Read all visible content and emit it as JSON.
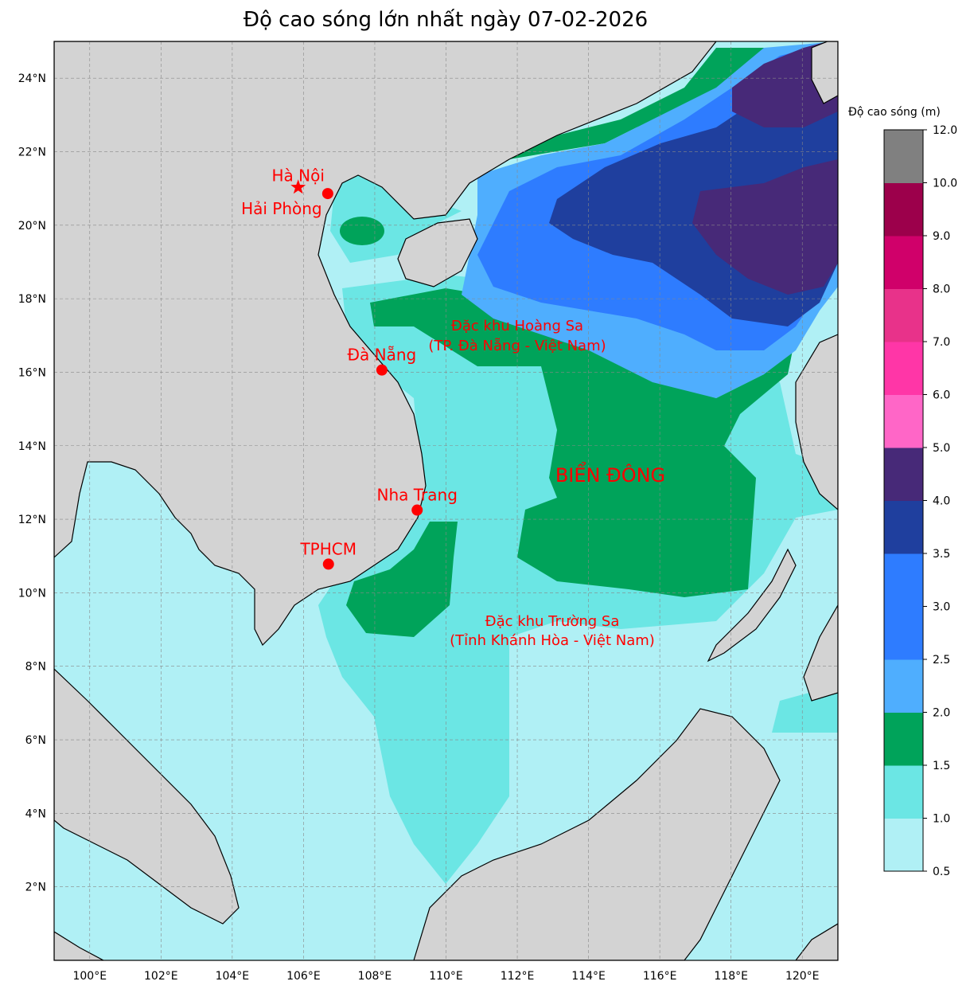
{
  "title": "Độ cao sóng lớn nhất ngày 07-02-2026",
  "colorbar": {
    "title": "Độ cao sóng (m)",
    "levels": [
      {
        "from": 0.5,
        "to": 1.0,
        "color": "#b0f0f5"
      },
      {
        "from": 1.0,
        "to": 1.5,
        "color": "#6be6e4"
      },
      {
        "from": 1.5,
        "to": 2.0,
        "color": "#00a35a"
      },
      {
        "from": 2.0,
        "to": 2.5,
        "color": "#4faefe"
      },
      {
        "from": 2.5,
        "to": 3.0,
        "color": "#2e7cff"
      },
      {
        "from": 3.0,
        "to": 3.5,
        "color": "#2e7cff"
      },
      {
        "from": 3.5,
        "to": 4.0,
        "color": "#1f3f9e"
      },
      {
        "from": 4.0,
        "to": 5.0,
        "color": "#472978"
      },
      {
        "from": 5.0,
        "to": 6.0,
        "color": "#ff66c7"
      },
      {
        "from": 6.0,
        "to": 7.0,
        "color": "#ff36a7"
      },
      {
        "from": 7.0,
        "to": 8.0,
        "color": "#e8328a"
      },
      {
        "from": 8.0,
        "to": 9.0,
        "color": "#d0006a"
      },
      {
        "from": 9.0,
        "to": 10.0,
        "color": "#9c004b"
      },
      {
        "from": 10.0,
        "to": 12.0,
        "color": "#808080"
      }
    ],
    "tick_labels": [
      "0.5",
      "1.0",
      "1.5",
      "2.0",
      "2.5",
      "3.0",
      "3.5",
      "4.0",
      "5.0",
      "6.0",
      "7.0",
      "8.0",
      "9.0",
      "10.0",
      "12.0"
    ]
  },
  "axes": {
    "lon_labels": [
      "100°E",
      "102°E",
      "104°E",
      "106°E",
      "108°E",
      "110°E",
      "112°E",
      "114°E",
      "116°E",
      "118°E",
      "120°E"
    ],
    "lat_labels": [
      "2°N",
      "4°N",
      "6°N",
      "8°N",
      "10°N",
      "12°N",
      "14°N",
      "16°N",
      "18°N",
      "20°N",
      "22°N",
      "24°N"
    ],
    "lon_range": [
      99,
      121
    ],
    "lat_range": [
      0,
      25
    ],
    "grid": true
  },
  "places": [
    {
      "name": "Hà Nội",
      "symbol": "star",
      "lon": 105.85,
      "lat": 21.03
    },
    {
      "name": "Hải Phòng",
      "symbol": "dot",
      "lon": 106.68,
      "lat": 20.86
    },
    {
      "name": "Đà Nẵng",
      "symbol": "dot",
      "lon": 108.2,
      "lat": 16.06
    },
    {
      "name": "Nha Trang",
      "symbol": "dot",
      "lon": 109.19,
      "lat": 12.25
    },
    {
      "name": "TPHCM",
      "symbol": "dot",
      "lon": 106.7,
      "lat": 10.78
    }
  ],
  "annotations": {
    "hoang_sa_1": "Đặc khu Hoàng Sa",
    "hoang_sa_2": "(TP. Đà Nẵng - Việt Nam)",
    "bien_dong": "BIỂN ĐÔNG",
    "truong_sa_1": "Đặc khu Trường Sa",
    "truong_sa_2": "(Tỉnh Khánh Hòa - Việt Nam)"
  },
  "colors": {
    "land": "#d3d3d3",
    "marker": "#ff0000"
  }
}
